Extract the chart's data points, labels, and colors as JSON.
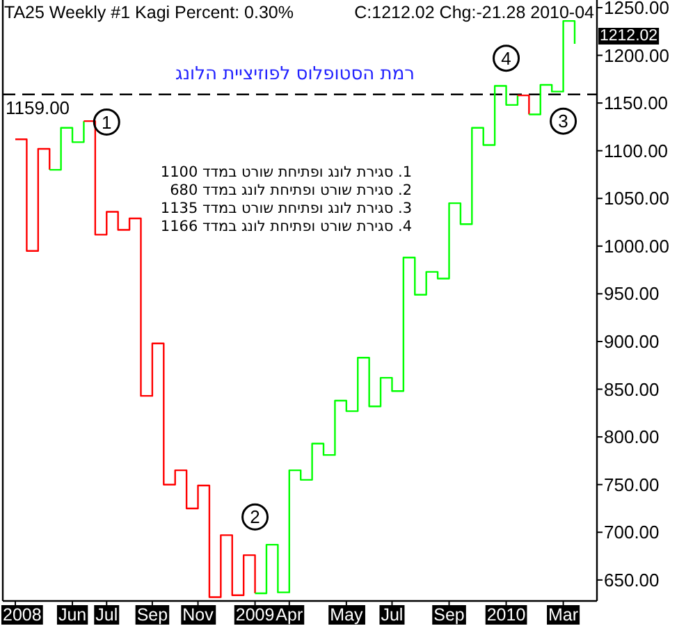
{
  "chart_data": {
    "type": "step",
    "title": "TA25 Weekly #1 Kagi Percent: 0.30%",
    "subtitle": "C:1212.02 Chg:-21.28 2010-04",
    "categories": [
      "2008",
      null,
      null,
      null,
      null,
      "Jun",
      null,
      null,
      "Jul",
      null,
      null,
      null,
      "Sep",
      null,
      null,
      null,
      "Nov",
      null,
      null,
      null,
      null,
      "2009",
      null,
      null,
      "Apr",
      null,
      null,
      null,
      null,
      "May",
      null,
      null,
      null,
      "Jul",
      null,
      null,
      null,
      null,
      "Sep",
      null,
      null,
      null,
      null,
      "2010",
      null,
      null,
      null,
      null,
      "Mar",
      null
    ],
    "ylim": [
      628,
      1258
    ],
    "yticks": [
      {
        "value": 650,
        "label": "650.00"
      },
      {
        "value": 700,
        "label": "700.00"
      },
      {
        "value": 750,
        "label": "750.00"
      },
      {
        "value": 800,
        "label": "800.00"
      },
      {
        "value": 850,
        "label": "850.00"
      },
      {
        "value": 900,
        "label": "900.00"
      },
      {
        "value": 950,
        "label": "950.00"
      },
      {
        "value": 1000,
        "label": "1000.00"
      },
      {
        "value": 1050,
        "label": "1050.00"
      },
      {
        "value": 1100,
        "label": "1100.00"
      },
      {
        "value": 1150,
        "label": "1150.00"
      },
      {
        "value": 1200,
        "label": "1200.00"
      },
      {
        "value": 1250,
        "label": "1250.00"
      }
    ],
    "ref_lines": [
      {
        "axis": "y",
        "value": 1159,
        "label": "1159.00",
        "color": "#000000",
        "line_style": "dashed"
      }
    ],
    "annotations": [
      "רמת הסטופלוס לפוזיציית הלונג",
      "1. סגירת לונג ופתיחת שורט במדד 1100",
      "2. סגירת שורט ופתיחת לונג במדד 680",
      "3. סגירת לונג ופתיחת שורט במדד 1135",
      "4. סגירת שורט ופתיחת לונג במדד 1166",
      "1212.02",
      {
        "text": "1",
        "x": "Jul",
        "y": 1130
      },
      {
        "text": "2",
        "x": "2009",
        "y": 716
      },
      {
        "text": "3",
        "x": "Mar",
        "y": 1131
      },
      {
        "text": "4",
        "x": "2010",
        "y": 1197
      }
    ],
    "series": [
      {
        "color": "#ff0000",
        "values": [
          1112,
          995,
          1102,
          1080,
          null,
          null,
          null,
          null,
          null,
          null,
          null,
          null,
          null,
          null,
          null,
          null,
          null,
          null,
          null,
          null,
          null,
          null,
          null,
          null,
          null,
          null,
          null,
          null,
          null,
          null,
          null,
          null,
          null,
          null,
          null,
          null,
          null,
          null,
          null,
          null,
          null,
          null,
          null,
          null,
          null,
          null,
          null,
          null,
          null,
          null
        ]
      },
      {
        "color": "#00ff00",
        "values": [
          null,
          null,
          null,
          1080,
          1124,
          1109,
          1131,
          null,
          null,
          null,
          null,
          null,
          null,
          null,
          null,
          null,
          null,
          null,
          null,
          null,
          null,
          null,
          null,
          null,
          null,
          null,
          null,
          null,
          null,
          null,
          null,
          null,
          null,
          null,
          null,
          null,
          null,
          null,
          null,
          null,
          null,
          null,
          null,
          null,
          null,
          null,
          null,
          null,
          null,
          null
        ]
      },
      {
        "color": "#ff0000",
        "values": [
          null,
          null,
          null,
          null,
          null,
          null,
          1131,
          1012,
          1036,
          1017,
          1029,
          843,
          898,
          750,
          765,
          725,
          749,
          632,
          697,
          634,
          676,
          636,
          null,
          null,
          null,
          null,
          null,
          null,
          null,
          null,
          null,
          null,
          null,
          null,
          null,
          null,
          null,
          null,
          null,
          null,
          null,
          null,
          null,
          null,
          null,
          null,
          null,
          null,
          null,
          null
        ]
      },
      {
        "color": "#00ff00",
        "values": [
          null,
          null,
          null,
          null,
          null,
          null,
          null,
          null,
          null,
          null,
          null,
          null,
          null,
          null,
          null,
          null,
          null,
          null,
          null,
          null,
          null,
          636,
          687,
          637,
          765,
          755,
          793,
          781,
          838,
          827,
          883,
          832,
          862,
          848,
          988,
          949,
          973,
          966,
          1045,
          1023,
          1124,
          1106,
          1168,
          1148,
          1158,
          null,
          null,
          null,
          null,
          null
        ]
      },
      {
        "color": "#ff0000",
        "values": [
          null,
          null,
          null,
          null,
          null,
          null,
          null,
          null,
          null,
          null,
          null,
          null,
          null,
          null,
          null,
          null,
          null,
          null,
          null,
          null,
          null,
          null,
          null,
          null,
          null,
          null,
          null,
          null,
          null,
          null,
          null,
          null,
          null,
          null,
          null,
          null,
          null,
          null,
          null,
          null,
          null,
          null,
          null,
          null,
          1158,
          1138,
          null,
          null,
          null,
          null
        ]
      },
      {
        "color": "#00ff00",
        "values": [
          null,
          null,
          null,
          null,
          null,
          null,
          null,
          null,
          null,
          null,
          null,
          null,
          null,
          null,
          null,
          null,
          null,
          null,
          null,
          null,
          null,
          null,
          null,
          null,
          null,
          null,
          null,
          null,
          null,
          null,
          null,
          null,
          null,
          null,
          null,
          null,
          null,
          null,
          null,
          null,
          null,
          null,
          null,
          null,
          null,
          1138,
          1169,
          1162,
          1236,
          1212
        ]
      }
    ]
  }
}
